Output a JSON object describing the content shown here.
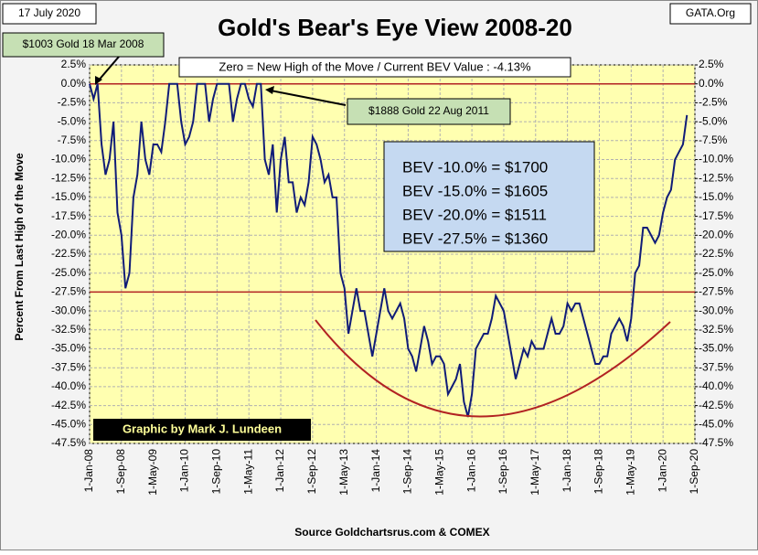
{
  "chart_data": {
    "type": "line",
    "date_label": "17 July 2020",
    "source_tag": "GATA.Org",
    "title": "Gold's Bear's Eye View 2008-20",
    "subtitle": "Zero = New High of the Move / Current  BEV Value : -4.13%",
    "annotations": [
      "$1003 Gold 18 Mar 2008",
      "$1888 Gold 22 Aug 2011"
    ],
    "bev_table": [
      "BEV -10.0% = $1700",
      "BEV -15.0% = $1605",
      "BEV -20.0% = $1511",
      "BEV -27.5% = $1360"
    ],
    "credit": "Graphic by Mark J. Lundeen",
    "y_label": "Percent  From Last High of the Move",
    "x_label": "Source Goldchartsrus.com & COMEX",
    "grid": true,
    "ref_lines": [
      0,
      -27.5
    ],
    "ref_color": "#b22222",
    "xlim": [
      "2008-01-01",
      "2020-09-01"
    ],
    "xticks": [
      {
        "value": "2008-01-01",
        "label": "1-Jan-08"
      },
      {
        "value": "2008-09-01",
        "label": "1-Sep-08"
      },
      {
        "value": "2009-05-01",
        "label": "1-May-09"
      },
      {
        "value": "2010-01-01",
        "label": "1-Jan-10"
      },
      {
        "value": "2010-09-01",
        "label": "1-Sep-10"
      },
      {
        "value": "2011-05-01",
        "label": "1-May-11"
      },
      {
        "value": "2012-01-01",
        "label": "1-Jan-12"
      },
      {
        "value": "2012-09-01",
        "label": "1-Sep-12"
      },
      {
        "value": "2013-05-01",
        "label": "1-May-13"
      },
      {
        "value": "2014-01-01",
        "label": "1-Jan-14"
      },
      {
        "value": "2014-09-01",
        "label": "1-Sep-14"
      },
      {
        "value": "2015-05-01",
        "label": "1-May-15"
      },
      {
        "value": "2016-01-01",
        "label": "1-Jan-16"
      },
      {
        "value": "2016-09-01",
        "label": "1-Sep-16"
      },
      {
        "value": "2017-05-01",
        "label": "1-May-17"
      },
      {
        "value": "2018-01-01",
        "label": "1-Jan-18"
      },
      {
        "value": "2018-09-01",
        "label": "1-Sep-18"
      },
      {
        "value": "2019-05-01",
        "label": "1-May-19"
      },
      {
        "value": "2020-01-01",
        "label": "1-Jan-20"
      },
      {
        "value": "2020-09-01",
        "label": "1-Sep-20"
      }
    ],
    "ylim": [
      -47.5,
      2.5
    ],
    "yticks": [
      {
        "value": 2.5,
        "label": "2.5%"
      },
      {
        "value": 0,
        "label": "0.0%"
      },
      {
        "value": -2.5,
        "label": "-2.5%"
      },
      {
        "value": -5,
        "label": "-5.0%"
      },
      {
        "value": -7.5,
        "label": "-7.5%"
      },
      {
        "value": -10,
        "label": "-10.0%"
      },
      {
        "value": -12.5,
        "label": "-12.5%"
      },
      {
        "value": -15,
        "label": "-15.0%"
      },
      {
        "value": -17.5,
        "label": "-17.5%"
      },
      {
        "value": -20,
        "label": "-20.0%"
      },
      {
        "value": -22.5,
        "label": "-22.5%"
      },
      {
        "value": -25,
        "label": "-25.0%"
      },
      {
        "value": -27.5,
        "label": "-27.5%"
      },
      {
        "value": -30,
        "label": "-30.0%"
      },
      {
        "value": -32.5,
        "label": "-32.5%"
      },
      {
        "value": -35,
        "label": "-35.0%"
      },
      {
        "value": -37.5,
        "label": "-37.5%"
      },
      {
        "value": -40,
        "label": "-40.0%"
      },
      {
        "value": -42.5,
        "label": "-42.5%"
      },
      {
        "value": -45,
        "label": "-45.0%"
      },
      {
        "value": -47.5,
        "label": "-47.5%"
      }
    ],
    "y2lim": [
      -47.5,
      2.5
    ],
    "y2ticks": [
      {
        "value": 2.5,
        "label": "2.5%"
      },
      {
        "value": 0,
        "label": "0.0%"
      },
      {
        "value": -2.5,
        "label": "-2.5%"
      },
      {
        "value": -5,
        "label": "-5.0%"
      },
      {
        "value": -7.5,
        "label": "-7.5%"
      },
      {
        "value": -10,
        "label": "-10.0%"
      },
      {
        "value": -12.5,
        "label": "-12.5%"
      },
      {
        "value": -15,
        "label": "-15.0%"
      },
      {
        "value": -17.5,
        "label": "-17.5%"
      },
      {
        "value": -20,
        "label": "-20.0%"
      },
      {
        "value": -22.5,
        "label": "-22.5%"
      },
      {
        "value": -25,
        "label": "-25.0%"
      },
      {
        "value": -27.5,
        "label": "-27.5%"
      },
      {
        "value": -30,
        "label": "-30.0%"
      },
      {
        "value": -32.5,
        "label": "-32.5%"
      },
      {
        "value": -35,
        "label": "-35.0%"
      },
      {
        "value": -37.5,
        "label": "-37.5%"
      },
      {
        "value": -40,
        "label": "-40.0%"
      },
      {
        "value": -42.5,
        "label": "-42.5%"
      },
      {
        "value": -45,
        "label": "-45.0%"
      },
      {
        "value": -47.5,
        "label": "-47.5%"
      }
    ],
    "x": [
      "2008-01-01",
      "2008-02-01",
      "2008-03-01",
      "2008-04-01",
      "2008-05-01",
      "2008-06-01",
      "2008-07-01",
      "2008-08-01",
      "2008-09-01",
      "2008-10-01",
      "2008-11-01",
      "2008-12-01",
      "2009-01-01",
      "2009-02-01",
      "2009-03-01",
      "2009-04-01",
      "2009-05-01",
      "2009-06-01",
      "2009-07-01",
      "2009-08-01",
      "2009-09-01",
      "2009-10-01",
      "2009-11-01",
      "2009-12-01",
      "2010-01-01",
      "2010-02-01",
      "2010-03-01",
      "2010-04-01",
      "2010-05-01",
      "2010-06-01",
      "2010-07-01",
      "2010-08-01",
      "2010-09-01",
      "2010-10-01",
      "2010-11-01",
      "2010-12-01",
      "2011-01-01",
      "2011-02-01",
      "2011-03-01",
      "2011-04-01",
      "2011-05-01",
      "2011-06-01",
      "2011-07-01",
      "2011-08-01",
      "2011-09-01",
      "2011-10-01",
      "2011-11-01",
      "2011-12-01",
      "2012-01-01",
      "2012-02-01",
      "2012-03-01",
      "2012-04-01",
      "2012-05-01",
      "2012-06-01",
      "2012-07-01",
      "2012-08-01",
      "2012-09-01",
      "2012-10-01",
      "2012-11-01",
      "2012-12-01",
      "2013-01-01",
      "2013-02-01",
      "2013-03-01",
      "2013-04-01",
      "2013-05-01",
      "2013-06-01",
      "2013-07-01",
      "2013-08-01",
      "2013-09-01",
      "2013-10-01",
      "2013-11-01",
      "2013-12-01",
      "2014-01-01",
      "2014-02-01",
      "2014-03-01",
      "2014-04-01",
      "2014-05-01",
      "2014-06-01",
      "2014-07-01",
      "2014-08-01",
      "2014-09-01",
      "2014-10-01",
      "2014-11-01",
      "2014-12-01",
      "2015-01-01",
      "2015-02-01",
      "2015-03-01",
      "2015-04-01",
      "2015-05-01",
      "2015-06-01",
      "2015-07-01",
      "2015-08-01",
      "2015-09-01",
      "2015-10-01",
      "2015-11-01",
      "2015-12-01",
      "2016-01-01",
      "2016-02-01",
      "2016-03-01",
      "2016-04-01",
      "2016-05-01",
      "2016-06-01",
      "2016-07-01",
      "2016-08-01",
      "2016-09-01",
      "2016-10-01",
      "2016-11-01",
      "2016-12-01",
      "2017-01-01",
      "2017-02-01",
      "2017-03-01",
      "2017-04-01",
      "2017-05-01",
      "2017-06-01",
      "2017-07-01",
      "2017-08-01",
      "2017-09-01",
      "2017-10-01",
      "2017-11-01",
      "2017-12-01",
      "2018-01-01",
      "2018-02-01",
      "2018-03-01",
      "2018-04-01",
      "2018-05-01",
      "2018-06-01",
      "2018-07-01",
      "2018-08-01",
      "2018-09-01",
      "2018-10-01",
      "2018-11-01",
      "2018-12-01",
      "2019-01-01",
      "2019-02-01",
      "2019-03-01",
      "2019-04-01",
      "2019-05-01",
      "2019-06-01",
      "2019-07-01",
      "2019-08-01",
      "2019-09-01",
      "2019-10-01",
      "2019-11-01",
      "2019-12-01",
      "2020-01-01",
      "2020-02-01",
      "2020-03-01",
      "2020-04-01",
      "2020-05-01",
      "2020-06-01",
      "2020-07-01"
    ],
    "series": [
      {
        "name": "BEV",
        "color": "#101c78",
        "values": [
          0,
          -2,
          0,
          -8,
          -12,
          -10,
          -5,
          -17,
          -20,
          -27,
          -25,
          -15,
          -12,
          -5,
          -10,
          -12,
          -8,
          -8,
          -9,
          -5,
          0,
          0,
          0,
          -5,
          -8,
          -7,
          -5,
          0,
          0,
          0,
          -5,
          -2,
          0,
          0,
          0,
          0,
          -5,
          -2,
          0,
          0,
          -2,
          -3,
          0,
          0,
          -10,
          -12,
          -8,
          -17,
          -10,
          -7,
          -13,
          -13,
          -17,
          -15,
          -16,
          -13,
          -7,
          -8,
          -10,
          -13,
          -12,
          -15,
          -15,
          -25,
          -27,
          -33,
          -30,
          -27,
          -30,
          -30,
          -33,
          -36,
          -33,
          -30,
          -27,
          -30,
          -31,
          -30,
          -29,
          -31,
          -35,
          -36,
          -38,
          -35,
          -32,
          -34,
          -37,
          -36,
          -36,
          -37,
          -41,
          -40,
          -39,
          -37,
          -42,
          -44,
          -41,
          -35,
          -34,
          -33,
          -33,
          -31,
          -28,
          -29,
          -30,
          -33,
          -36,
          -39,
          -37,
          -35,
          -36,
          -34,
          -35,
          -35,
          -35,
          -33,
          -31,
          -33,
          -33,
          -32,
          -29,
          -30,
          -29,
          -29,
          -31,
          -33,
          -35,
          -37,
          -37,
          -36,
          -36,
          -33,
          -32,
          -31,
          -32,
          -34,
          -31,
          -25,
          -24,
          -19,
          -19,
          -20,
          -21,
          -20,
          -17,
          -15,
          -14,
          -10,
          -9,
          -8,
          -4.13
        ]
      }
    ]
  }
}
